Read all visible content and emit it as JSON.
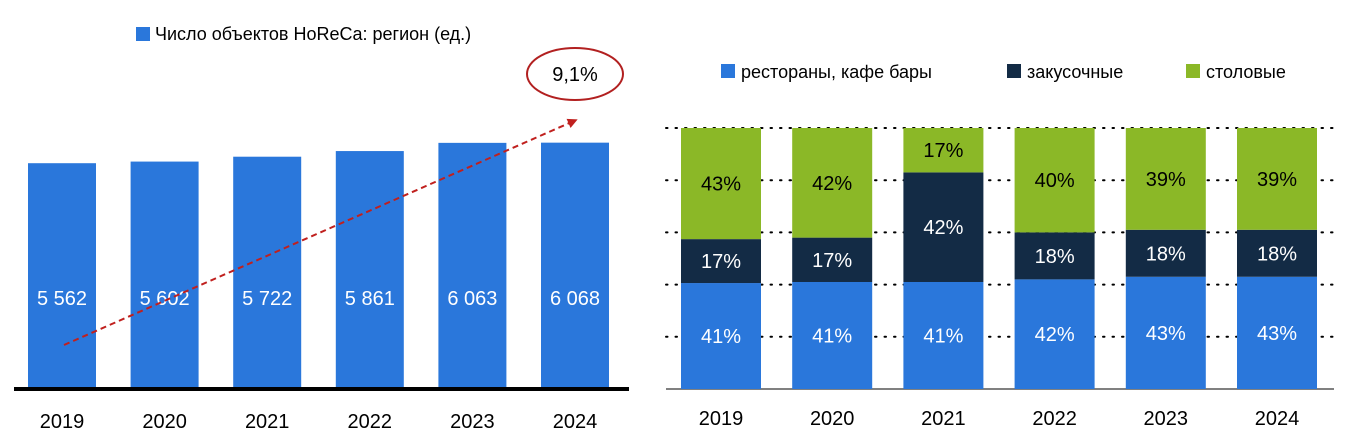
{
  "colors": {
    "blue": "#2A77DB",
    "navy": "#132B45",
    "green": "#8BB827",
    "axis": "#000000",
    "cagr_ring": "#B22020",
    "arrow": "#C0201E",
    "label_light": "#FFFFFF",
    "text": "#000000"
  },
  "chart_data": [
    {
      "type": "bar",
      "title": "",
      "legend": [
        {
          "name": "Число объектов HoReCa: регион (ед.)",
          "color": "#2A77DB"
        }
      ],
      "legend_placement": "top",
      "categories": [
        "2019",
        "2020",
        "2021",
        "2022",
        "2023",
        "2024"
      ],
      "values": [
        5562,
        5602,
        5722,
        5861,
        6063,
        6068
      ],
      "value_labels": [
        "5 562",
        "5 602",
        "5 722",
        "5 861",
        "6 063",
        "6 068"
      ],
      "ylim": [
        0,
        6700
      ],
      "grid": false,
      "annotation": {
        "text": "9,1%",
        "kind": "growth-arrow"
      }
    },
    {
      "type": "bar",
      "stacked": true,
      "percent": true,
      "categories": [
        "2019",
        "2020",
        "2021",
        "2022",
        "2023",
        "2024"
      ],
      "series": [
        {
          "name": "рестораны, кафе бары",
          "color": "#2A77DB",
          "values": [
            41,
            41,
            41,
            42,
            43,
            43
          ]
        },
        {
          "name": "закусочные",
          "color": "#132B45",
          "values": [
            17,
            17,
            42,
            18,
            18,
            18
          ]
        },
        {
          "name": "столовые",
          "color": "#8BB827",
          "values": [
            43,
            42,
            17,
            40,
            39,
            39
          ]
        }
      ],
      "legend_placement": "top",
      "ylim": [
        0,
        100
      ],
      "grid": true,
      "grid_style": "dotted"
    }
  ]
}
